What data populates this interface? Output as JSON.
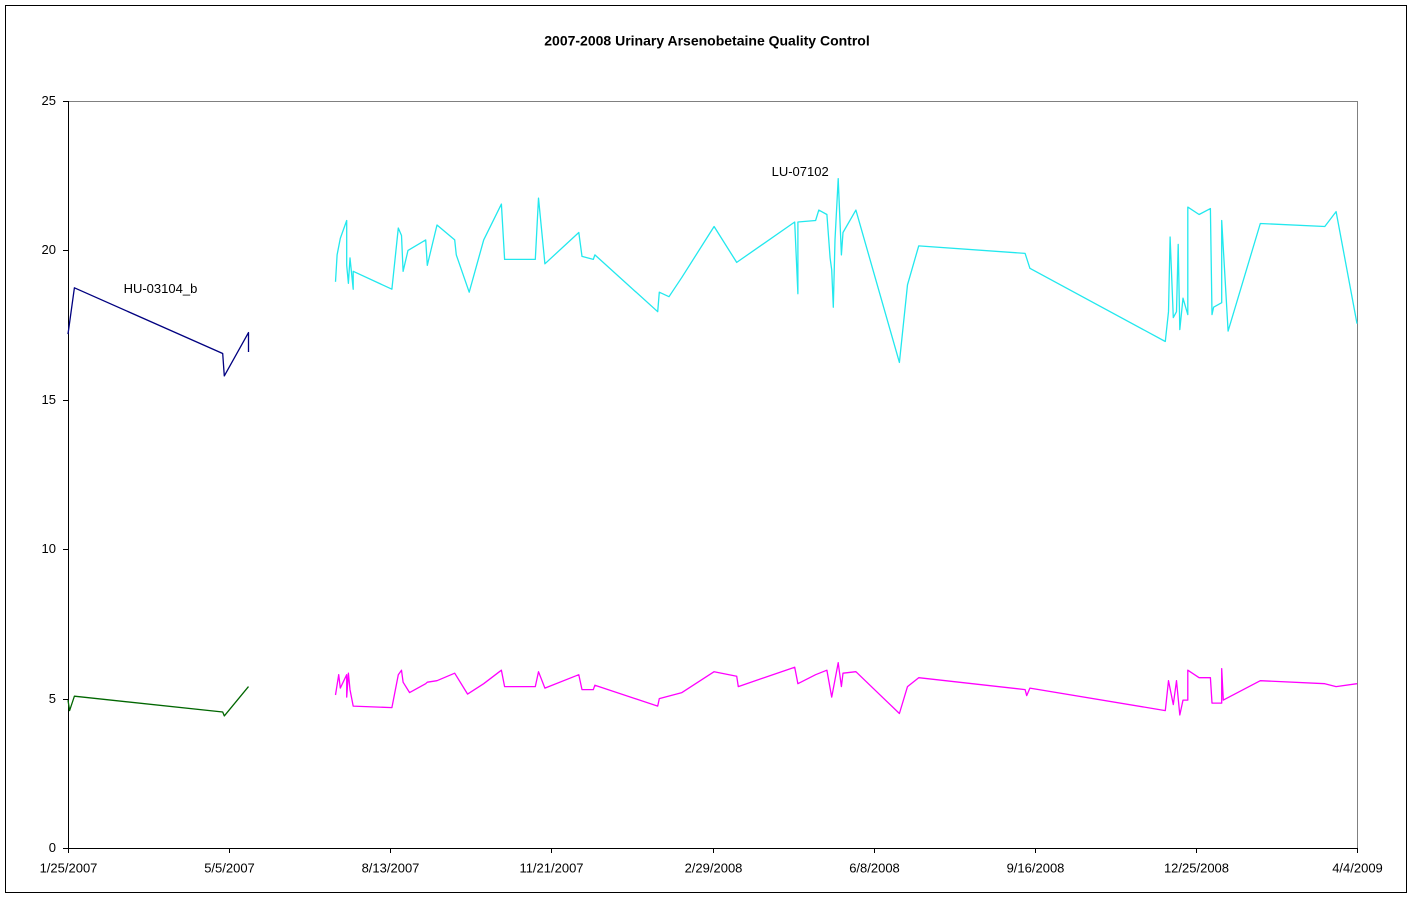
{
  "chart_data": {
    "type": "line",
    "title": "2007-2008 Urinary Arsenobetaine Quality Control",
    "xlim": [
      "1/25/2007",
      "4/4/2009"
    ],
    "xticks": [
      "1/25/2007",
      "5/5/2007",
      "8/13/2007",
      "11/21/2007",
      "2/29/2008",
      "6/8/2008",
      "9/16/2008",
      "12/25/2008",
      "4/4/2009"
    ],
    "ylim": [
      0,
      25
    ],
    "yticks": [
      0,
      5,
      10,
      15,
      20,
      25
    ],
    "grid": false,
    "series": [
      {
        "name": "HU-03104_b",
        "color": "#000080",
        "x": [
          "1/25/2007",
          "1/29/2007",
          "5/1/2007",
          "5/2/2007",
          "5/17/2007",
          "5/17/2007"
        ],
        "values": [
          17.2,
          18.75,
          16.55,
          15.8,
          17.25,
          16.6
        ]
      },
      {
        "color": "#006600",
        "x": [
          "1/25/2007",
          "1/26/2007",
          "1/29/2007",
          "5/1/2007",
          "5/2/2007",
          "5/17/2007"
        ],
        "values": [
          4.95,
          4.6,
          5.08,
          4.55,
          4.42,
          5.4
        ]
      },
      {
        "name": "LU-07102",
        "color": "#22e8ee",
        "x": [
          "7/10/2007",
          "7/11/2007",
          "7/13/2007",
          "7/17/2007",
          "7/17/2007",
          "7/18/2007",
          "7/19/2007",
          "7/21/2007",
          "7/21/2007",
          "8/14/2007",
          "8/18/2007",
          "8/20/2007",
          "8/21/2007",
          "8/24/2007",
          "9/4/2007",
          "9/5/2007",
          "9/11/2007",
          "9/22/2007",
          "9/23/2007",
          "10/1/2007",
          "10/10/2007",
          "10/21/2007",
          "10/23/2007",
          "11/11/2007",
          "11/13/2007",
          "11/17/2007",
          "12/8/2007",
          "12/10/2007",
          "12/17/2007",
          "12/18/2007",
          "1/26/2008",
          "1/27/2008",
          "2/2/2008",
          "2/10/2008",
          "3/1/2008",
          "3/15/2008",
          "4/20/2008",
          "4/22/2008",
          "4/22/2008",
          "5/3/2008",
          "5/5/2008",
          "5/10/2008",
          "5/12/2008",
          "5/13/2008",
          "5/14/2008",
          "5/15/2008",
          "5/17/2008",
          "5/19/2008",
          "5/20/2008",
          "5/28/2008",
          "6/24/2008",
          "6/29/2008",
          "7/6/2008",
          "9/10/2008",
          "9/13/2008",
          "12/6/2008",
          "12/8/2008",
          "12/9/2008",
          "12/11/2008",
          "12/13/2008",
          "12/14/2008",
          "12/15/2008",
          "12/17/2008",
          "12/20/2008",
          "12/20/2008",
          "12/27/2008",
          "1/3/2009",
          "1/4/2009",
          "1/5/2009",
          "1/10/2009",
          "1/10/2009",
          "1/14/2009",
          "2/3/2009",
          "3/15/2009",
          "3/22/2009",
          "4/4/2009"
        ],
        "values": [
          18.95,
          19.85,
          20.4,
          21.0,
          19.5,
          18.9,
          19.75,
          18.7,
          19.3,
          18.7,
          20.75,
          20.5,
          19.3,
          20.0,
          20.35,
          19.5,
          20.85,
          20.35,
          19.85,
          18.6,
          20.35,
          21.55,
          19.7,
          19.7,
          21.75,
          19.55,
          20.6,
          19.8,
          19.7,
          19.85,
          17.95,
          18.6,
          18.45,
          19.1,
          20.8,
          19.6,
          20.95,
          18.55,
          20.95,
          21.0,
          21.35,
          21.2,
          19.75,
          19.35,
          18.1,
          20.35,
          22.4,
          19.85,
          20.6,
          21.35,
          16.25,
          18.85,
          20.15,
          19.9,
          19.4,
          16.95,
          17.95,
          20.45,
          17.75,
          17.95,
          20.2,
          17.35,
          18.4,
          17.85,
          21.45,
          21.2,
          21.4,
          17.85,
          18.1,
          18.25,
          21.0,
          17.3,
          20.9,
          20.8,
          21.3,
          17.55
        ]
      },
      {
        "color": "#ff00ff",
        "x": [
          "7/10/2007",
          "7/12/2007",
          "7/13/2007",
          "7/17/2007",
          "7/17/2007",
          "7/18/2007",
          "7/19/2007",
          "7/21/2007",
          "8/14/2007",
          "8/18/2007",
          "8/20/2007",
          "8/21/2007",
          "8/25/2007",
          "9/4/2007",
          "9/5/2007",
          "9/11/2007",
          "9/22/2007",
          "9/30/2007",
          "10/10/2007",
          "10/21/2007",
          "10/23/2007",
          "11/11/2007",
          "11/13/2007",
          "11/17/2007",
          "12/8/2007",
          "12/10/2007",
          "12/17/2007",
          "12/18/2007",
          "1/26/2008",
          "1/27/2008",
          "2/10/2008",
          "3/1/2008",
          "3/15/2008",
          "3/16/2008",
          "4/20/2008",
          "4/22/2008",
          "5/3/2008",
          "5/10/2008",
          "5/13/2008",
          "5/17/2008",
          "5/19/2008",
          "5/20/2008",
          "5/28/2008",
          "6/24/2008",
          "6/29/2008",
          "7/6/2008",
          "9/10/2008",
          "9/11/2008",
          "9/13/2008",
          "12/6/2008",
          "12/8/2008",
          "12/11/2008",
          "12/13/2008",
          "12/15/2008",
          "12/17/2008",
          "12/20/2008",
          "12/20/2008",
          "12/27/2008",
          "1/3/2009",
          "1/4/2009",
          "1/10/2009",
          "1/10/2009",
          "1/11/2009",
          "2/3/2009",
          "3/15/2009",
          "3/22/2009",
          "4/4/2009"
        ],
        "values": [
          5.12,
          5.8,
          5.35,
          5.8,
          5.05,
          5.85,
          5.3,
          4.75,
          4.7,
          5.8,
          5.95,
          5.55,
          5.2,
          5.5,
          5.55,
          5.6,
          5.85,
          5.15,
          5.5,
          5.95,
          5.4,
          5.4,
          5.9,
          5.35,
          5.8,
          5.3,
          5.3,
          5.45,
          4.75,
          5.0,
          5.2,
          5.9,
          5.75,
          5.4,
          6.05,
          5.5,
          5.8,
          5.95,
          5.05,
          6.2,
          5.4,
          5.85,
          5.9,
          4.5,
          5.4,
          5.7,
          5.3,
          5.1,
          5.35,
          4.6,
          5.6,
          4.8,
          5.6,
          4.45,
          4.95,
          4.95,
          5.95,
          5.7,
          5.7,
          4.85,
          4.85,
          6.0,
          4.95,
          5.6,
          5.5,
          5.4,
          5.5
        ]
      }
    ]
  }
}
